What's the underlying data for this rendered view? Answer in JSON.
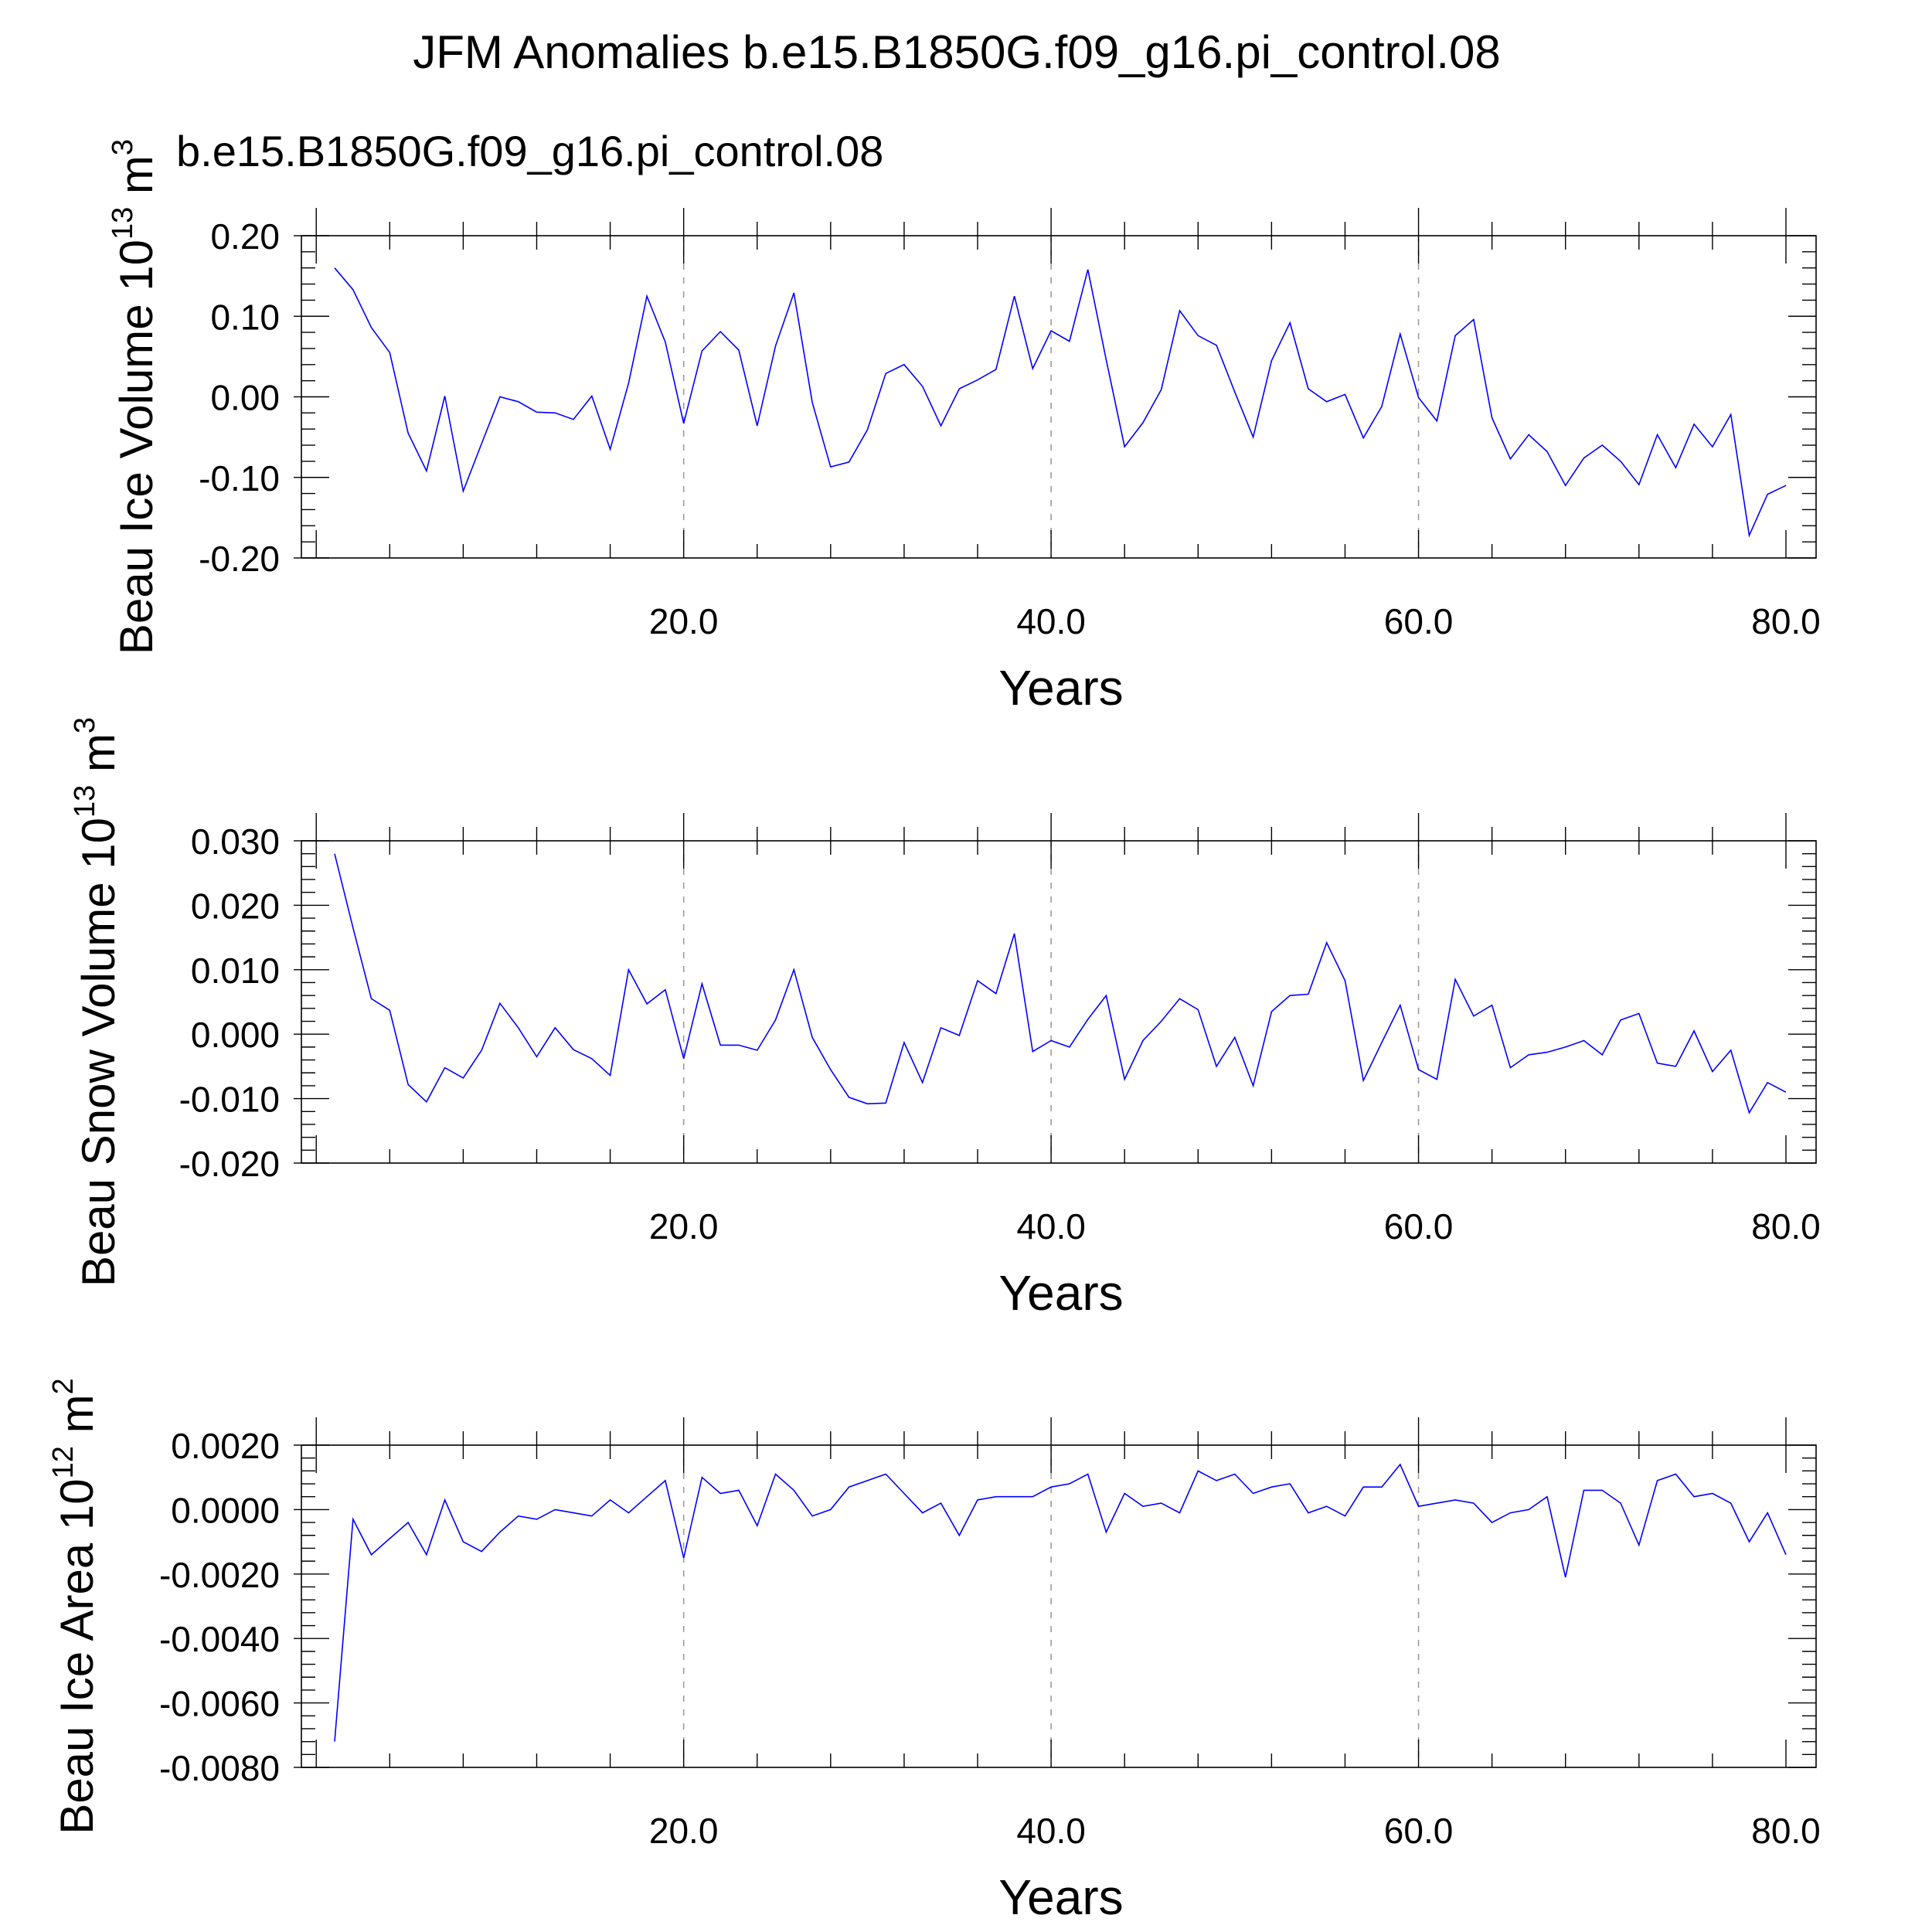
{
  "title": "JFM Anomalies b.e15.B1850G.f09_g16.pi_control.08",
  "case_label": "b.e15.B1850G.f09_g16.pi_control.08",
  "colors": {
    "series": "#0000ff",
    "case_label": "#0000ff",
    "gridline": "#9a9a9a",
    "axis": "#000000"
  },
  "chart_data": [
    {
      "type": "line",
      "ylabel": "Beau Ice Volume",
      "yunit_base": "10",
      "yunit_exp": "13",
      "yunit_tail": "m",
      "yunit_tail_exp": "3",
      "xlabel": "Years",
      "xlim": [
        1,
        80
      ],
      "ylim": [
        -0.2,
        0.2
      ],
      "yticks": [
        -0.2,
        -0.1,
        0.0,
        0.1,
        0.2
      ],
      "ytick_labels": [
        "-0.20",
        "-0.10",
        "0.00",
        "0.10",
        "0.20"
      ],
      "xticks": [
        20,
        40,
        60,
        80
      ],
      "xtick_labels": [
        "20.0",
        "40.0",
        "60.0",
        "80.0"
      ],
      "vlines": [
        20,
        40,
        60
      ],
      "grid": false,
      "series": [
        {
          "x": [
            1,
            2,
            3,
            4,
            5,
            6,
            7,
            8,
            9,
            10,
            11,
            12,
            13,
            14,
            15,
            16,
            17,
            18,
            19,
            20,
            21,
            22,
            23,
            24,
            25,
            26,
            27,
            28,
            29,
            30,
            31,
            32,
            33,
            34,
            35,
            36,
            37,
            38,
            39,
            40,
            41,
            42,
            43,
            44,
            45,
            46,
            47,
            48,
            49,
            50,
            51,
            52,
            53,
            54,
            55,
            56,
            57,
            58,
            59,
            60,
            61,
            62,
            63,
            64,
            65,
            66,
            67,
            68,
            69,
            70,
            71,
            72,
            73,
            74,
            75,
            76,
            77,
            78,
            79,
            80
          ],
          "values": [
            0.16,
            0.133,
            0.086,
            0.055,
            -0.045,
            -0.092,
            0.001,
            -0.117,
            -0.058,
            0.0,
            -0.006,
            -0.019,
            -0.02,
            -0.028,
            0.001,
            -0.065,
            0.017,
            0.125,
            0.068,
            -0.033,
            0.057,
            0.081,
            0.058,
            -0.036,
            0.063,
            0.129,
            -0.007,
            -0.087,
            -0.081,
            -0.041,
            0.029,
            0.04,
            0.013,
            -0.036,
            0.01,
            0.021,
            0.034,
            0.125,
            0.035,
            0.082,
            0.069,
            0.158,
            0.046,
            -0.062,
            -0.032,
            0.009,
            0.107,
            0.076,
            0.064,
            0.006,
            -0.05,
            0.045,
            0.092,
            0.01,
            -0.006,
            0.003,
            -0.051,
            -0.012,
            0.078,
            -0.001,
            -0.03,
            0.076,
            0.096,
            -0.026,
            -0.077,
            -0.047,
            -0.068,
            -0.11,
            -0.076,
            -0.06,
            -0.08,
            -0.109,
            -0.047,
            -0.088,
            -0.034,
            -0.062,
            -0.022,
            -0.172,
            -0.121,
            -0.11
          ]
        }
      ]
    },
    {
      "type": "line",
      "ylabel": "Beau Snow Volume",
      "yunit_base": "10",
      "yunit_exp": "13",
      "yunit_tail": "m",
      "yunit_tail_exp": "3",
      "xlabel": "Years",
      "xlim": [
        1,
        80
      ],
      "ylim": [
        -0.02,
        0.03
      ],
      "yticks": [
        -0.02,
        -0.01,
        0.0,
        0.01,
        0.02,
        0.03
      ],
      "ytick_labels": [
        "-0.020",
        "-0.010",
        "0.000",
        "0.010",
        "0.020",
        "0.030"
      ],
      "xticks": [
        20,
        40,
        60,
        80
      ],
      "xtick_labels": [
        "20.0",
        "40.0",
        "60.0",
        "80.0"
      ],
      "vlines": [
        20,
        40,
        60
      ],
      "grid": false,
      "series": [
        {
          "x": [
            1,
            2,
            3,
            4,
            5,
            6,
            7,
            8,
            9,
            10,
            11,
            12,
            13,
            14,
            15,
            16,
            17,
            18,
            19,
            20,
            21,
            22,
            23,
            24,
            25,
            26,
            27,
            28,
            29,
            30,
            31,
            32,
            33,
            34,
            35,
            36,
            37,
            38,
            39,
            40,
            41,
            42,
            43,
            44,
            45,
            46,
            47,
            48,
            49,
            50,
            51,
            52,
            53,
            54,
            55,
            56,
            57,
            58,
            59,
            60,
            61,
            62,
            63,
            64,
            65,
            66,
            67,
            68,
            69,
            70,
            71,
            72,
            73,
            74,
            75,
            76,
            77,
            78,
            79,
            80
          ],
          "values": [
            0.028,
            0.0165,
            0.0055,
            0.0037,
            -0.0078,
            -0.0105,
            -0.0052,
            -0.0068,
            -0.0025,
            0.0048,
            0.001,
            -0.0035,
            0.001,
            -0.0024,
            -0.0038,
            -0.0064,
            0.01,
            0.0047,
            0.0069,
            -0.0038,
            0.0078,
            -0.0017,
            -0.0017,
            -0.0025,
            0.0022,
            0.01,
            -0.0005,
            -0.0055,
            -0.0098,
            -0.0108,
            -0.0107,
            -0.0013,
            -0.0075,
            0.001,
            -0.0002,
            0.0083,
            0.0063,
            0.0156,
            -0.0027,
            -0.001,
            -0.002,
            0.0023,
            0.006,
            -0.007,
            -0.001,
            0.002,
            0.0055,
            0.0038,
            -0.005,
            -0.0005,
            -0.008,
            0.0035,
            0.006,
            0.0062,
            0.0142,
            0.0083,
            -0.0072,
            -0.0013,
            0.0045,
            -0.0055,
            -0.007,
            0.0085,
            0.0028,
            0.0045,
            -0.0052,
            -0.0032,
            -0.0028,
            -0.002,
            -0.001,
            -0.0032,
            0.0022,
            0.0032,
            -0.0045,
            -0.005,
            0.0005,
            -0.0058,
            -0.0025,
            -0.0122,
            -0.0075,
            -0.009
          ]
        }
      ]
    },
    {
      "type": "line",
      "ylabel": "Beau Ice Area",
      "yunit_base": "10",
      "yunit_exp": "12",
      "yunit_tail": "m",
      "yunit_tail_exp": "2",
      "xlabel": "Years",
      "xlim": [
        1,
        80
      ],
      "ylim": [
        -0.008,
        0.002
      ],
      "yticks": [
        -0.008,
        -0.006,
        -0.004,
        -0.002,
        0.0,
        0.002
      ],
      "ytick_labels": [
        "-0.0080",
        "-0.0060",
        "-0.0040",
        "-0.0020",
        "0.0000",
        "0.0020"
      ],
      "xticks": [
        20,
        40,
        60,
        80
      ],
      "xtick_labels": [
        "20.0",
        "40.0",
        "60.0",
        "80.0"
      ],
      "vlines": [
        20,
        40,
        60
      ],
      "grid": false,
      "series": [
        {
          "x": [
            1,
            2,
            3,
            4,
            5,
            6,
            7,
            8,
            9,
            10,
            11,
            12,
            13,
            14,
            15,
            16,
            17,
            18,
            19,
            20,
            21,
            22,
            23,
            24,
            25,
            26,
            27,
            28,
            29,
            30,
            31,
            32,
            33,
            34,
            35,
            36,
            37,
            38,
            39,
            40,
            41,
            42,
            43,
            44,
            45,
            46,
            47,
            48,
            49,
            50,
            51,
            52,
            53,
            54,
            55,
            56,
            57,
            58,
            59,
            60,
            61,
            62,
            63,
            64,
            65,
            66,
            67,
            68,
            69,
            70,
            71,
            72,
            73,
            74,
            75,
            76,
            77,
            78,
            79,
            80
          ],
          "values": [
            -0.0072,
            -0.0003,
            -0.0014,
            -0.0009,
            -0.0004,
            -0.0014,
            0.0003,
            -0.001,
            -0.0013,
            -0.0007,
            -0.0002,
            -0.0003,
            0.0,
            -0.0001,
            -0.0002,
            0.0003,
            -0.0001,
            0.0004,
            0.0009,
            -0.0015,
            0.001,
            0.0005,
            0.0006,
            -0.0005,
            0.0011,
            0.0006,
            -0.0002,
            0.0,
            0.0007,
            0.0009,
            0.0011,
            0.0005,
            -0.0001,
            0.0002,
            -0.0008,
            0.0003,
            0.0004,
            0.0004,
            0.0004,
            0.0007,
            0.0008,
            0.0011,
            -0.0007,
            0.0005,
            0.0001,
            0.0002,
            -0.0001,
            0.0012,
            0.0009,
            0.0011,
            0.0005,
            0.0007,
            0.0008,
            -0.0001,
            0.0001,
            -0.0002,
            0.0007,
            0.0007,
            0.0014,
            0.0001,
            0.0002,
            0.0003,
            0.0002,
            -0.0004,
            -0.0001,
            0.0,
            0.0004,
            -0.0021,
            0.0006,
            0.0006,
            0.0002,
            -0.0011,
            0.0009,
            0.0011,
            0.0004,
            0.0005,
            0.0002,
            -0.001,
            -0.0001,
            -0.0014
          ]
        }
      ]
    }
  ]
}
